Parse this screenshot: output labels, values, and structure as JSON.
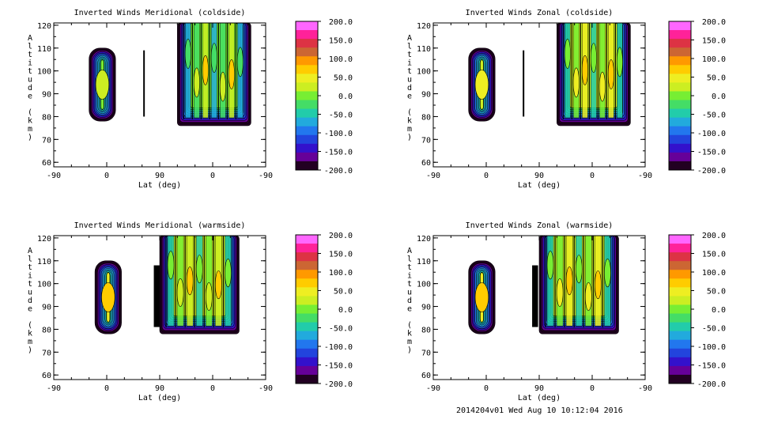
{
  "footer_text": "2014204v01 Wed Aug 10 10:12:04 2016",
  "colorbar": {
    "levels": [
      "200.0",
      "150.0",
      "100.0",
      "50.0",
      "0.0",
      "-50.0",
      "-100.0",
      "-150.0",
      "-200.0"
    ],
    "colors": [
      "#ff66ff",
      "#ff2299",
      "#dd3344",
      "#cc6633",
      "#ff9900",
      "#ffcc00",
      "#eeee22",
      "#ccee22",
      "#77ee33",
      "#44dd66",
      "#22ccaa",
      "#22aadd",
      "#2277ee",
      "#2244dd",
      "#3311cc",
      "#660099",
      "#220022"
    ]
  },
  "chart_data": [
    {
      "type": "heatmap",
      "title": "Inverted Winds Meridional (coldside)",
      "xlabel": "Lat (deg)",
      "ylabel": "Altitude (km)",
      "x_ticks": [
        "-90",
        "0",
        "90",
        "0",
        "-90"
      ],
      "y_ticks": [
        "60",
        "70",
        "80",
        "90",
        "100",
        "110",
        "120"
      ],
      "ylim": [
        58,
        121
      ],
      "colorbar_range": [
        -200,
        200
      ],
      "regions": [
        {
          "x_range": [
            -30,
            15
          ],
          "alt_range": [
            78,
            110
          ],
          "peak": 0
        },
        {
          "x_range": [
            62,
            64
          ],
          "alt_range": [
            80,
            109
          ],
          "peak": -200
        },
        {
          "x_range": [
            120,
            245
          ],
          "alt_range": [
            76,
            121
          ],
          "peak": 10
        }
      ]
    },
    {
      "type": "heatmap",
      "title": "Inverted Winds Zonal (coldside)",
      "xlabel": "Lat (deg)",
      "ylabel": "Altitude (km)",
      "x_ticks": [
        "-90",
        "0",
        "90",
        "0",
        "-90"
      ],
      "y_ticks": [
        "60",
        "70",
        "80",
        "90",
        "100",
        "110",
        "120"
      ],
      "ylim": [
        58,
        121
      ],
      "colorbar_range": [
        -200,
        200
      ],
      "regions": [
        {
          "x_range": [
            -30,
            15
          ],
          "alt_range": [
            78,
            110
          ],
          "peak": 20
        },
        {
          "x_range": [
            62,
            64
          ],
          "alt_range": [
            80,
            109
          ],
          "peak": -200
        },
        {
          "x_range": [
            120,
            245
          ],
          "alt_range": [
            76,
            121
          ],
          "peak": 30
        }
      ]
    },
    {
      "type": "heatmap",
      "title": "Inverted Winds Meridional (warmside)",
      "xlabel": "Lat (deg)",
      "ylabel": "Altitude (km)",
      "x_ticks": [
        "-90",
        "0",
        "90",
        "0",
        "-90"
      ],
      "y_ticks": [
        "60",
        "70",
        "80",
        "90",
        "100",
        "110",
        "120"
      ],
      "ylim": [
        58,
        121
      ],
      "colorbar_range": [
        -200,
        200
      ],
      "regions": [
        {
          "x_range": [
            -20,
            25
          ],
          "alt_range": [
            78,
            110
          ],
          "peak": 40
        },
        {
          "x_range": [
            80,
            90
          ],
          "alt_range": [
            81,
            108
          ],
          "peak": -200
        },
        {
          "x_range": [
            90,
            225
          ],
          "alt_range": [
            78,
            121
          ],
          "peak": 20
        }
      ]
    },
    {
      "type": "heatmap",
      "title": "Inverted Winds Zonal (warmside)",
      "xlabel": "Lat (deg)",
      "ylabel": "Altitude (km)",
      "x_ticks": [
        "-90",
        "0",
        "90",
        "0",
        "-90"
      ],
      "y_ticks": [
        "60",
        "70",
        "80",
        "90",
        "100",
        "110",
        "120"
      ],
      "ylim": [
        58,
        121
      ],
      "colorbar_range": [
        -200,
        200
      ],
      "regions": [
        {
          "x_range": [
            -30,
            15
          ],
          "alt_range": [
            78,
            110
          ],
          "peak": 40
        },
        {
          "x_range": [
            78,
            88
          ],
          "alt_range": [
            81,
            108
          ],
          "peak": -200
        },
        {
          "x_range": [
            90,
            225
          ],
          "alt_range": [
            78,
            121
          ],
          "peak": 30
        }
      ]
    }
  ]
}
